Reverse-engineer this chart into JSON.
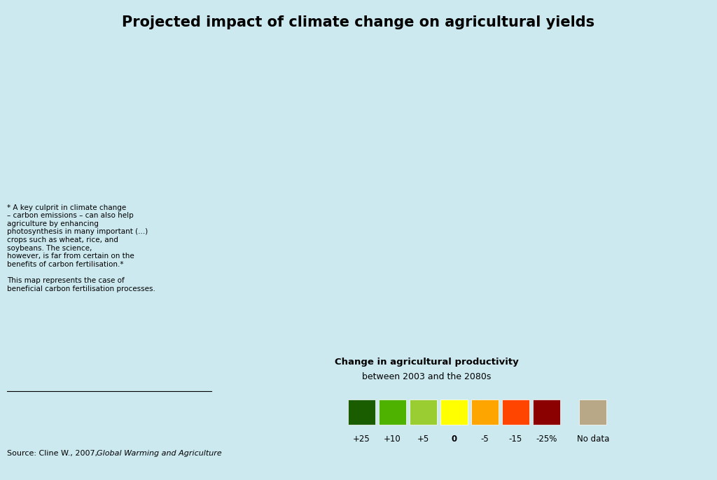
{
  "title": "Projected impact of climate change on agricultural yields",
  "legend_title": "Change in agricultural productivity",
  "legend_subtitle": "between 2003 and the 2080s",
  "source_text": "Source: Cline W., 2007, ",
  "source_italic": "Global Warming and Agriculture",
  "source_end": ".",
  "annotation_text": "* A key culprit in climate change\n– carbon emissions – can also help\nagriculture by enhancing\nphotosynthesis in many important (...)\ncrops such as wheat, rice, and\nsoybeans. The science,\nhowever, is far from certain on the\nbenefits of carbon fertilisation.*\n\nThis map represents the case of\nbeneficial carbon fertilisation processes.",
  "background_color": "#cce9f0",
  "title_bg_color": "#ddf0f7",
  "legend_labels": [
    "+25",
    "+10",
    "+5",
    "0",
    "-5",
    "-15",
    "-25%",
    "No data"
  ],
  "legend_colors": [
    "#1a5c00",
    "#4db300",
    "#9acd32",
    "#ffff00",
    "#ffa500",
    "#ff4500",
    "#8b0000",
    "#b8a888"
  ],
  "default_color": "#b8a888",
  "country_colors": {
    "Canada": "#4db300",
    "United States of America": "#1a5c00",
    "Mexico": "#ff4500",
    "Guatemala": "#ff4500",
    "Belize": "#ffa500",
    "Honduras": "#ff4500",
    "El Salvador": "#ff4500",
    "Nicaragua": "#ff4500",
    "Costa Rica": "#ffa500",
    "Panama": "#ffa500",
    "Cuba": "#ffa500",
    "Haiti": "#ff4500",
    "Dominican Rep.": "#ff4500",
    "Jamaica": "#ffa500",
    "Trinidad and Tobago": "#ffa500",
    "Colombia": "#ffa500",
    "Venezuela": "#ffa500",
    "Guyana": "#ffa500",
    "Suriname": "#ffa500",
    "Ecuador": "#ffa500",
    "Peru": "#ffa500",
    "Bolivia": "#ffa500",
    "Brazil": "#ffff00",
    "Paraguay": "#ffa500",
    "Uruguay": "#ffa500",
    "Argentina": "#9acd32",
    "Chile": "#ffa500",
    "Iceland": "#b8a888",
    "Norway": "#4db300",
    "Sweden": "#4db300",
    "Finland": "#4db300",
    "Denmark": "#4db300",
    "United Kingdom": "#4db300",
    "Ireland": "#4db300",
    "Netherlands": "#4db300",
    "Belgium": "#4db300",
    "Luxembourg": "#4db300",
    "France": "#4db300",
    "Germany": "#4db300",
    "Switzerland": "#4db300",
    "Austria": "#4db300",
    "Spain": "#4db300",
    "Portugal": "#4db300",
    "Italy": "#4db300",
    "Poland": "#4db300",
    "Czechia": "#4db300",
    "Czech Republic": "#4db300",
    "Slovakia": "#4db300",
    "Hungary": "#4db300",
    "Romania": "#4db300",
    "Bulgaria": "#4db300",
    "Serbia": "#4db300",
    "Croatia": "#4db300",
    "Bosnia and Herzegovina": "#4db300",
    "Bosnia and Herz.": "#4db300",
    "Slovenia": "#4db300",
    "Albania": "#4db300",
    "North Macedonia": "#4db300",
    "Macedonia": "#4db300",
    "Greece": "#ffa500",
    "Turkey": "#ffa500",
    "Estonia": "#4db300",
    "Latvia": "#4db300",
    "Lithuania": "#4db300",
    "Belarus": "#4db300",
    "Ukraine": "#4db300",
    "Moldova": "#4db300",
    "Russia": "#9acd32",
    "Kazakhstan": "#9acd32",
    "Uzbekistan": "#ffa500",
    "Turkmenistan": "#ffa500",
    "Kyrgyzstan": "#ffa500",
    "Tajikistan": "#ffa500",
    "Azerbaijan": "#ffa500",
    "Armenia": "#ffa500",
    "Georgia": "#ffa500",
    "Mongolia": "#b8a888",
    "China": "#1a5c00",
    "North Korea": "#1a5c00",
    "South Korea": "#1a5c00",
    "Japan": "#4db300",
    "Afghanistan": "#ffa500",
    "Pakistan": "#ff4500",
    "India": "#ff4500",
    "Nepal": "#ff4500",
    "Bangladesh": "#ff4500",
    "Sri Lanka": "#ff4500",
    "Myanmar": "#ff4500",
    "Thailand": "#ff4500",
    "Laos": "#ff4500",
    "Vietnam": "#ff4500",
    "Cambodia": "#ff4500",
    "Malaysia": "#ff4500",
    "Indonesia": "#ff4500",
    "Philippines": "#ff4500",
    "Papua New Guinea": "#ffa500",
    "Iran": "#ffa500",
    "Iraq": "#8b0000",
    "Syria": "#8b0000",
    "Jordan": "#8b0000",
    "Israel": "#8b0000",
    "Lebanon": "#8b0000",
    "Saudi Arabia": "#8b0000",
    "Yemen": "#8b0000",
    "Oman": "#8b0000",
    "United Arab Emirates": "#8b0000",
    "Qatar": "#8b0000",
    "Kuwait": "#8b0000",
    "Egypt": "#8b0000",
    "Libya": "#8b0000",
    "Tunisia": "#8b0000",
    "Algeria": "#8b0000",
    "Morocco": "#ff4500",
    "Mauritania": "#ffa500",
    "Mali": "#ffa500",
    "Niger": "#ffa500",
    "Chad": "#ff4500",
    "Sudan": "#8b0000",
    "South Sudan": "#8b0000",
    "S. Sudan": "#8b0000",
    "Ethiopia": "#8b0000",
    "Eritrea": "#8b0000",
    "Djibouti": "#8b0000",
    "Somalia": "#8b0000",
    "Kenya": "#8b0000",
    "Uganda": "#ff4500",
    "Rwanda": "#ff4500",
    "Burundi": "#ff4500",
    "Tanzania": "#ff4500",
    "United Republic of Tanzania": "#ff4500",
    "Mozambique": "#ff4500",
    "Zimbabwe": "#ff4500",
    "Zambia": "#ff4500",
    "Malawi": "#ff4500",
    "Angola": "#ffa500",
    "Namibia": "#ffa500",
    "Botswana": "#ffa500",
    "South Africa": "#9acd32",
    "Lesotho": "#ffa500",
    "Swaziland": "#ffa500",
    "eSwatini": "#ffa500",
    "Senegal": "#ffa500",
    "Gambia": "#ffa500",
    "Guinea-Bissau": "#ffa500",
    "Guinea": "#ffa500",
    "Sierra Leone": "#ffa500",
    "Liberia": "#ffa500",
    "Ivory Coast": "#ffa500",
    "Cote d'Ivoire": "#ffa500",
    "Côte d'Ivoire": "#ffa500",
    "Ghana": "#ffa500",
    "Togo": "#ffa500",
    "Benin": "#ffa500",
    "Nigeria": "#ff4500",
    "Cameroon": "#ff4500",
    "Central African Republic": "#ff4500",
    "Central African Rep.": "#ff4500",
    "Democratic Republic of the Congo": "#ff4500",
    "Dem. Rep. Congo": "#ff4500",
    "Congo": "#ffa500",
    "Republic of Congo": "#ffa500",
    "Gabon": "#ffa500",
    "Equatorial Guinea": "#ffa500",
    "Eq. Guinea": "#ffa500",
    "Burkina Faso": "#ffa500",
    "Madagascar": "#ffa500",
    "Australia": "#ff4500",
    "New Zealand": "#1a5c00",
    "W. Sahara": "#b8a888",
    "Western Sahara": "#b8a888",
    "Greenland": "#b8a888",
    "Somaliland": "#8b0000",
    "Kosovo": "#4db300",
    "Montenegro": "#4db300",
    "Cyprus": "#ffa500",
    "Palestine": "#8b0000",
    "Taiwan": "#ffa500",
    "Timor-Leste": "#ff4500",
    "Bhutan": "#ff4500",
    "Maldives": "#ff4500",
    "Singapore": "#ff4500",
    "Brunei": "#ff4500"
  }
}
